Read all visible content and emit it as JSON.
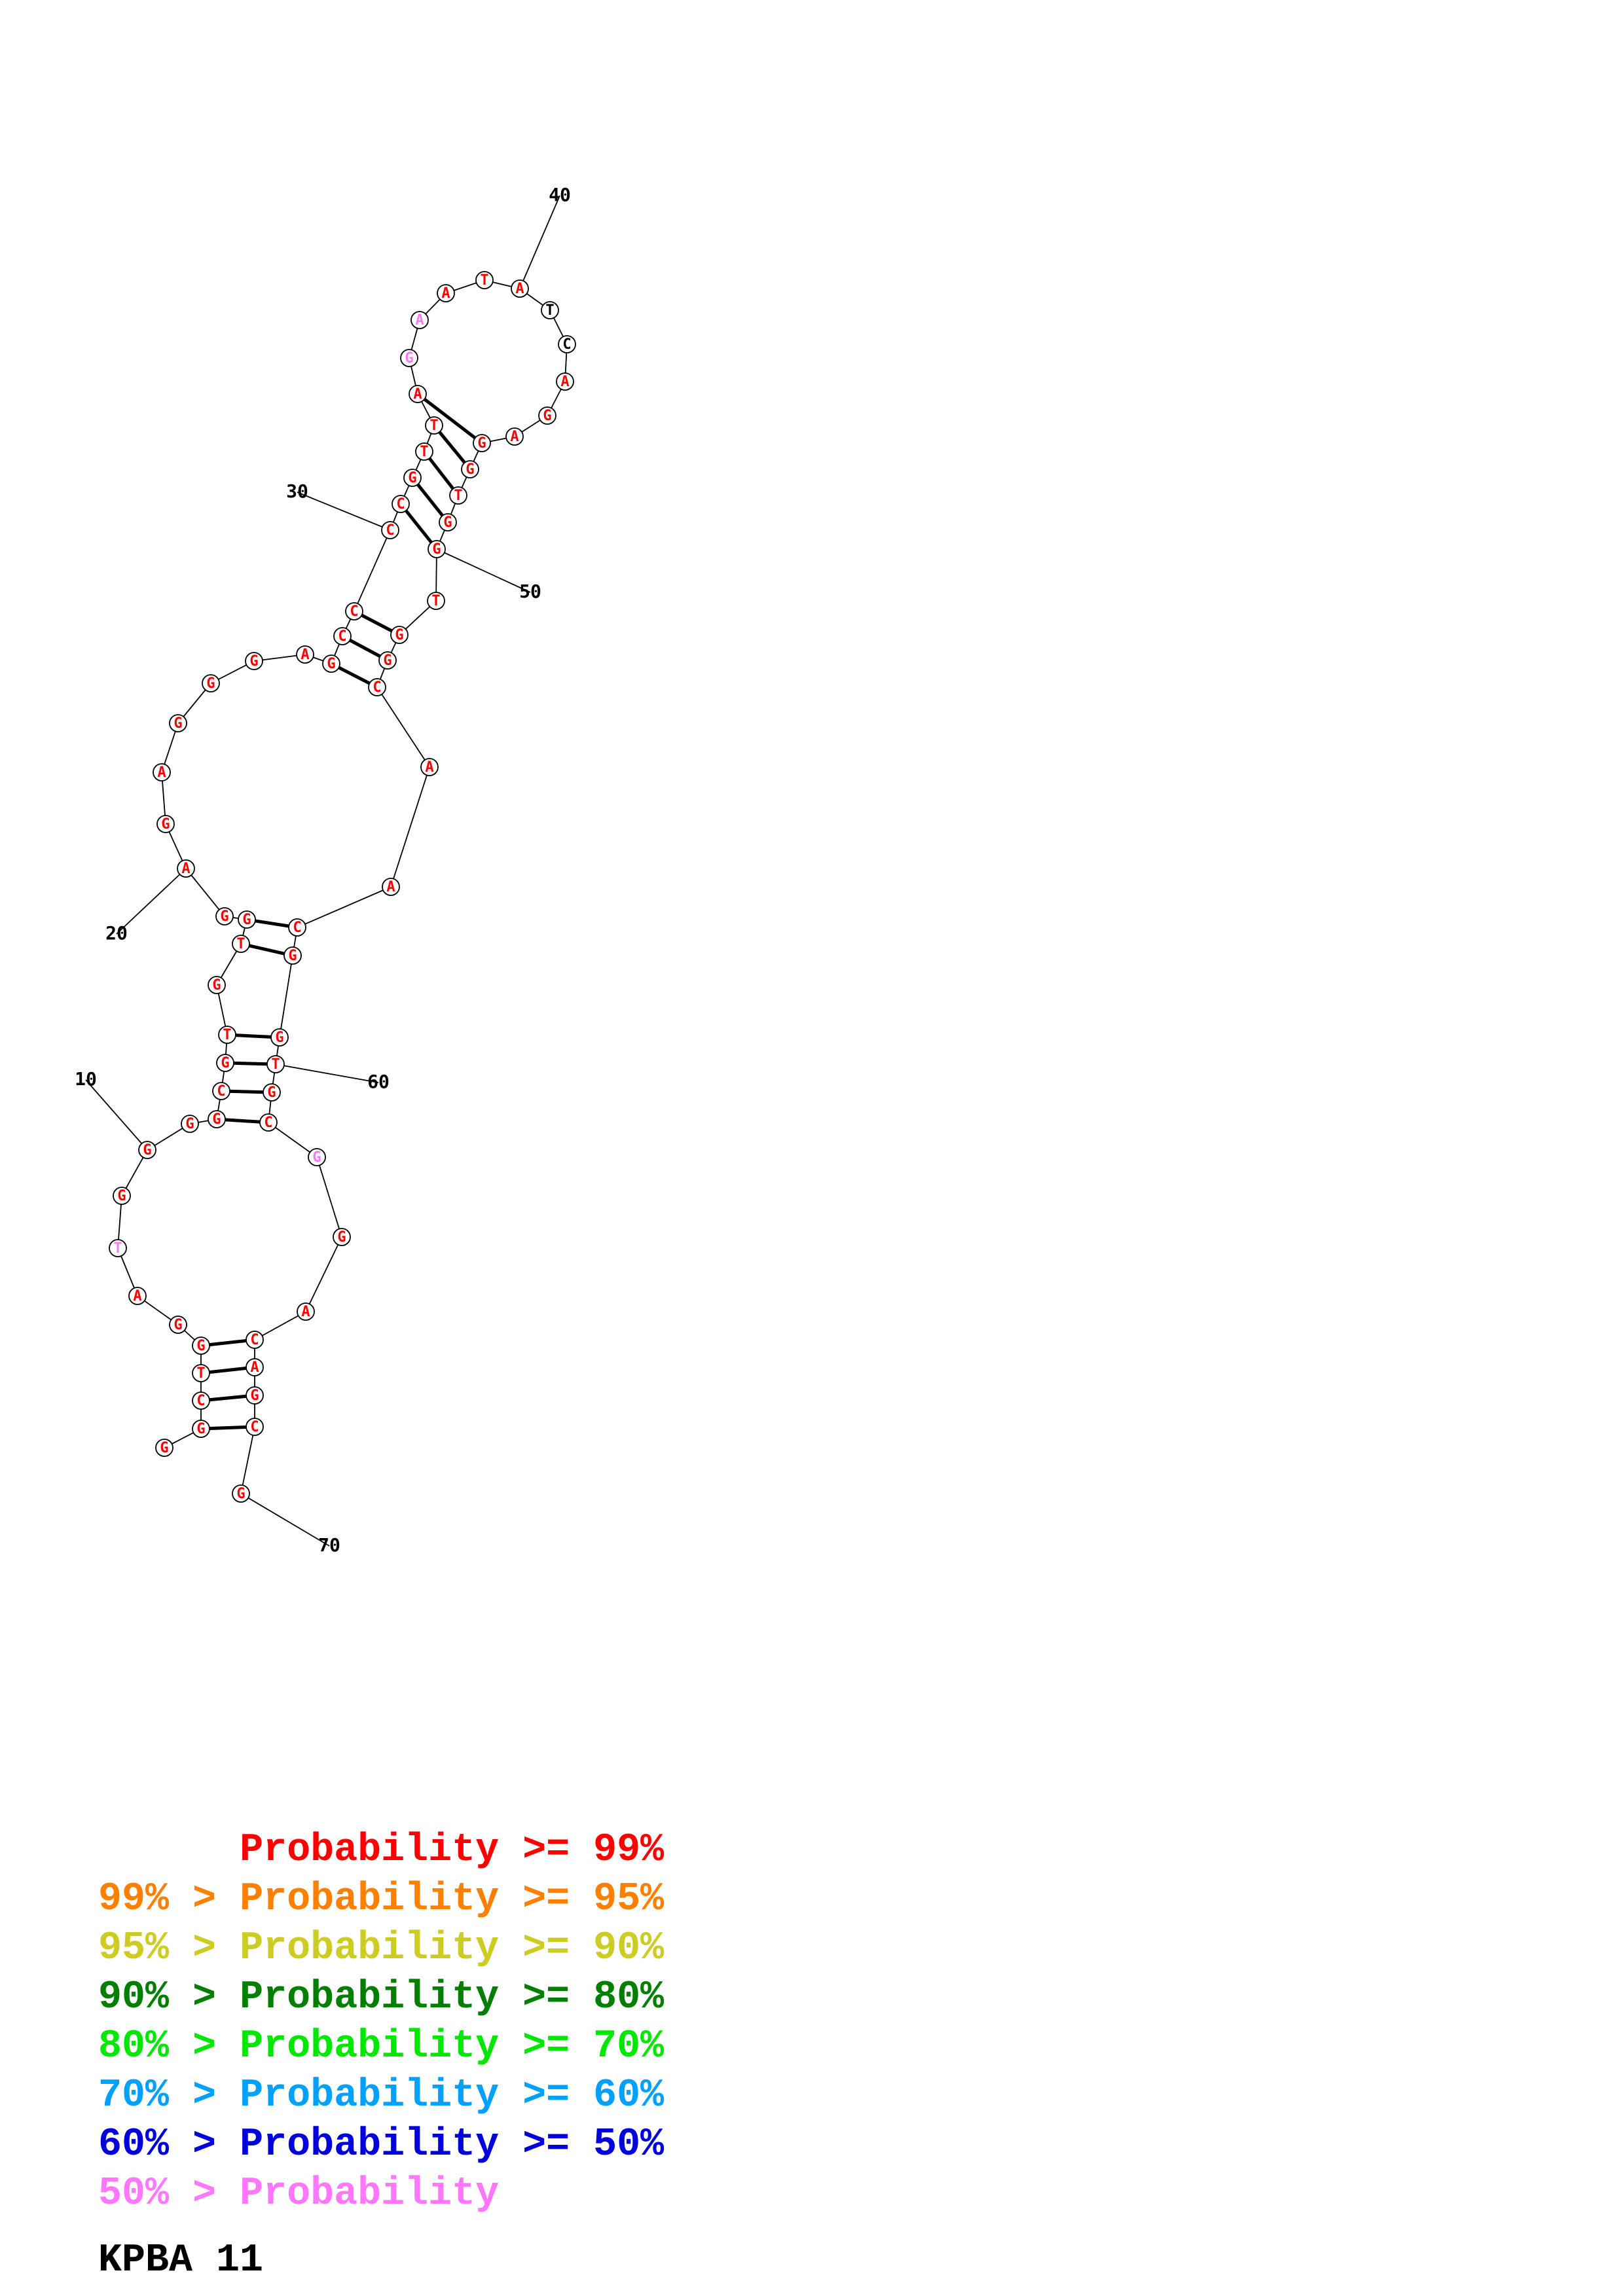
{
  "title": "KPBA 11",
  "colors": {
    "red": "#ff0000",
    "orange": "#ff7f00",
    "yellow": "#cccc22",
    "dark_green": "#007f00",
    "green": "#00e800",
    "cyan": "#00a0ff",
    "blue": "#0000dd",
    "pink": "#ff77ff",
    "black": "#000000"
  },
  "legend": [
    {
      "range_low": "",
      "sep": "",
      "label": "Probability",
      "range_high": ">= 99%",
      "color": "#ff0000"
    },
    {
      "range_low": "99%",
      "sep": ">",
      "label": "Probability",
      "range_high": ">= 95%",
      "color": "#ff7f00"
    },
    {
      "range_low": "95%",
      "sep": ">",
      "label": "Probability",
      "range_high": ">= 90%",
      "color": "#cccc22"
    },
    {
      "range_low": "90%",
      "sep": ">",
      "label": "Probability",
      "range_high": ">= 80%",
      "color": "#007f00"
    },
    {
      "range_low": "80%",
      "sep": ">",
      "label": "Probability",
      "range_high": ">= 70%",
      "color": "#00e800"
    },
    {
      "range_low": "70%",
      "sep": ">",
      "label": "Probability",
      "range_high": ">= 60%",
      "color": "#00a0ff"
    },
    {
      "range_low": "60%",
      "sep": ">",
      "label": "Probability",
      "range_high": ">= 50%",
      "color": "#0000dd"
    },
    {
      "range_low": "50%",
      "sep": ">",
      "label": "Probability",
      "range_high": "",
      "color": "#ff77ff"
    }
  ],
  "position_markers": [
    "10",
    "20",
    "30",
    "40",
    "50",
    "60",
    "70"
  ],
  "sequence": [
    {
      "n": 1,
      "base": "G",
      "color": "red"
    },
    {
      "n": 2,
      "base": "G",
      "color": "red"
    },
    {
      "n": 3,
      "base": "C",
      "color": "red"
    },
    {
      "n": 4,
      "base": "T",
      "color": "red"
    },
    {
      "n": 5,
      "base": "G",
      "color": "red"
    },
    {
      "n": 6,
      "base": "G",
      "color": "red"
    },
    {
      "n": 7,
      "base": "A",
      "color": "red"
    },
    {
      "n": 8,
      "base": "T",
      "color": "pink"
    },
    {
      "n": 9,
      "base": "G",
      "color": "red"
    },
    {
      "n": 10,
      "base": "G",
      "color": "red"
    },
    {
      "n": 11,
      "base": "G",
      "color": "red"
    },
    {
      "n": 12,
      "base": "G",
      "color": "red"
    },
    {
      "n": 13,
      "base": "C",
      "color": "red"
    },
    {
      "n": 14,
      "base": "G",
      "color": "red"
    },
    {
      "n": 15,
      "base": "T",
      "color": "red"
    },
    {
      "n": 16,
      "base": "G",
      "color": "red"
    },
    {
      "n": 17,
      "base": "T",
      "color": "red"
    },
    {
      "n": 18,
      "base": "G",
      "color": "red"
    },
    {
      "n": 19,
      "base": "G",
      "color": "red"
    },
    {
      "n": 20,
      "base": "A",
      "color": "red"
    },
    {
      "n": 21,
      "base": "G",
      "color": "red"
    },
    {
      "n": 22,
      "base": "A",
      "color": "red"
    },
    {
      "n": 23,
      "base": "G",
      "color": "red"
    },
    {
      "n": 24,
      "base": "G",
      "color": "red"
    },
    {
      "n": 25,
      "base": "G",
      "color": "red"
    },
    {
      "n": 26,
      "base": "A",
      "color": "red"
    },
    {
      "n": 27,
      "base": "G",
      "color": "red"
    },
    {
      "n": 28,
      "base": "C",
      "color": "red"
    },
    {
      "n": 29,
      "base": "C",
      "color": "red"
    },
    {
      "n": 30,
      "base": "C",
      "color": "red"
    },
    {
      "n": 31,
      "base": "C",
      "color": "red"
    },
    {
      "n": 32,
      "base": "G",
      "color": "red"
    },
    {
      "n": 33,
      "base": "T",
      "color": "red"
    },
    {
      "n": 34,
      "base": "T",
      "color": "red"
    },
    {
      "n": 35,
      "base": "A",
      "color": "red"
    },
    {
      "n": 36,
      "base": "G",
      "color": "pink"
    },
    {
      "n": 37,
      "base": "A",
      "color": "pink"
    },
    {
      "n": 38,
      "base": "A",
      "color": "red"
    },
    {
      "n": 39,
      "base": "T",
      "color": "red"
    },
    {
      "n": 40,
      "base": "A",
      "color": "red"
    },
    {
      "n": 41,
      "base": "T",
      "color": "black"
    },
    {
      "n": 42,
      "base": "C",
      "color": "black"
    },
    {
      "n": 43,
      "base": "A",
      "color": "red"
    },
    {
      "n": 44,
      "base": "G",
      "color": "red"
    },
    {
      "n": 45,
      "base": "A",
      "color": "red"
    },
    {
      "n": 46,
      "base": "G",
      "color": "red"
    },
    {
      "n": 47,
      "base": "G",
      "color": "red"
    },
    {
      "n": 48,
      "base": "T",
      "color": "red"
    },
    {
      "n": 49,
      "base": "G",
      "color": "red"
    },
    {
      "n": 50,
      "base": "G",
      "color": "red"
    },
    {
      "n": 51,
      "base": "T",
      "color": "red"
    },
    {
      "n": 52,
      "base": "G",
      "color": "red"
    },
    {
      "n": 53,
      "base": "G",
      "color": "red"
    },
    {
      "n": 54,
      "base": "C",
      "color": "red"
    },
    {
      "n": 55,
      "base": "A",
      "color": "red"
    },
    {
      "n": 56,
      "base": "A",
      "color": "red"
    },
    {
      "n": 57,
      "base": "C",
      "color": "red"
    },
    {
      "n": 58,
      "base": "G",
      "color": "red"
    },
    {
      "n": 59,
      "base": "G",
      "color": "red"
    },
    {
      "n": 60,
      "base": "T",
      "color": "red"
    },
    {
      "n": 61,
      "base": "G",
      "color": "red"
    },
    {
      "n": 62,
      "base": "C",
      "color": "red"
    },
    {
      "n": 63,
      "base": "G",
      "color": "pink"
    },
    {
      "n": 64,
      "base": "G",
      "color": "red"
    },
    {
      "n": 65,
      "base": "A",
      "color": "red"
    },
    {
      "n": 66,
      "base": "C",
      "color": "red"
    },
    {
      "n": 67,
      "base": "A",
      "color": "red"
    },
    {
      "n": 68,
      "base": "G",
      "color": "red"
    },
    {
      "n": 69,
      "base": "C",
      "color": "red"
    },
    {
      "n": 70,
      "base": "G",
      "color": "red"
    }
  ],
  "base_pairs": [
    [
      2,
      69
    ],
    [
      3,
      68
    ],
    [
      4,
      67
    ],
    [
      5,
      66
    ],
    [
      12,
      62
    ],
    [
      13,
      61
    ],
    [
      14,
      60
    ],
    [
      15,
      59
    ],
    [
      17,
      58
    ],
    [
      18,
      57
    ],
    [
      27,
      54
    ],
    [
      28,
      53
    ],
    [
      29,
      52
    ],
    [
      31,
      50
    ],
    [
      32,
      49
    ],
    [
      33,
      48
    ],
    [
      34,
      47
    ],
    [
      35,
      46
    ]
  ]
}
